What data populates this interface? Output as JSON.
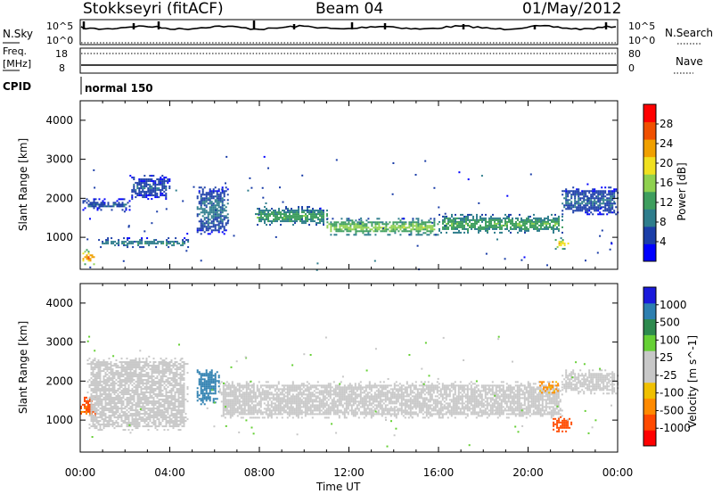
{
  "header": {
    "station": "Stokkseyri (fitACF)",
    "beam": "Beam 04",
    "date": "01/May/2012"
  },
  "params": {
    "nsky_label": "N.Sky",
    "nsky_ticks": [
      "10^5",
      "10^0"
    ],
    "nsearch_label": "N.Search",
    "nsearch_ticks": [
      "10^5",
      "10^0"
    ],
    "freq_label_1": "Freq.",
    "freq_label_2": "[MHz]",
    "freq_ticks": [
      "18",
      "8"
    ],
    "nave_label": "Nave",
    "nave_ticks": [
      "80",
      "0"
    ],
    "cpid_label": "CPID",
    "cpid_value": "normal 150"
  },
  "colors": {
    "power_scale": [
      "#0000ff",
      "#1b3ea8",
      "#2e7d8c",
      "#3e9e5e",
      "#8fd14f",
      "#f0e020",
      "#f0a000",
      "#f05000",
      "#ff0000"
    ],
    "velocity_scale": [
      "#ff0000",
      "#ff4a00",
      "#ff8a00",
      "#f0c000",
      "#c8c8c8",
      "#c8c8c8",
      "#66d035",
      "#2d8a4e",
      "#2d7fb0",
      "#1a1adc"
    ],
    "ground_scatter": "#c8c8c8"
  },
  "chart_data": [
    {
      "type": "heatmap",
      "title": "Power",
      "ylabel": "Slant Range [km]",
      "xlabel": "Time UT",
      "x_ticks": [
        "00:00",
        "04:00",
        "08:00",
        "12:00",
        "16:00",
        "20:00",
        "00:00"
      ],
      "x_range_hours": [
        0,
        24
      ],
      "y_ticks": [
        1000,
        2000,
        3000,
        4000
      ],
      "ylim": [
        180,
        4500
      ],
      "colorbar": {
        "label": "Power [dB]",
        "ticks": [
          4,
          8,
          12,
          16,
          20,
          24,
          28
        ],
        "range": [
          0,
          32
        ]
      },
      "scatter_bands": [
        {
          "start_h": 0.1,
          "end_h": 2.2,
          "range_km": [
            1700,
            2000
          ],
          "power_db": 6
        },
        {
          "start_h": 2.2,
          "end_h": 4.0,
          "range_km": [
            2000,
            2600
          ],
          "power_db": 6
        },
        {
          "start_h": 0.8,
          "end_h": 4.8,
          "range_km": [
            750,
            1000
          ],
          "power_db": 9
        },
        {
          "start_h": 0.1,
          "end_h": 0.6,
          "range_km": [
            300,
            700
          ],
          "power_db": 24
        },
        {
          "start_h": 5.2,
          "end_h": 6.6,
          "range_km": [
            1100,
            2300
          ],
          "power_db": 8
        },
        {
          "start_h": 7.8,
          "end_h": 11.0,
          "range_km": [
            1300,
            1800
          ],
          "power_db": 12
        },
        {
          "start_h": 11.0,
          "end_h": 16.0,
          "range_km": [
            1050,
            1500
          ],
          "power_db": 15
        },
        {
          "start_h": 16.0,
          "end_h": 21.5,
          "range_km": [
            1100,
            1600
          ],
          "power_db": 13
        },
        {
          "start_h": 21.2,
          "end_h": 21.8,
          "range_km": [
            700,
            1000
          ],
          "power_db": 20
        },
        {
          "start_h": 21.5,
          "end_h": 24.0,
          "range_km": [
            1600,
            2300
          ],
          "power_db": 7
        }
      ]
    },
    {
      "type": "heatmap",
      "title": "Velocity",
      "ylabel": "Slant Range [km]",
      "xlabel": "Time UT",
      "x_ticks": [
        "00:00",
        "04:00",
        "08:00",
        "12:00",
        "16:00",
        "20:00",
        "00:00"
      ],
      "x_range_hours": [
        0,
        24
      ],
      "y_ticks": [
        1000,
        2000,
        3000,
        4000
      ],
      "ylim": [
        180,
        4500
      ],
      "colorbar": {
        "label": "Velocity [m s^-1]",
        "ticks": [
          1000,
          500,
          100,
          25,
          -25,
          -100,
          -500,
          -1000
        ],
        "range": [
          -1000,
          1000
        ]
      },
      "scatter_bands": [
        {
          "start_h": 0.0,
          "end_h": 0.7,
          "range_km": [
            1100,
            1600
          ],
          "velocity": -600
        },
        {
          "start_h": 0.3,
          "end_h": 4.8,
          "range_km": [
            750,
            2600
          ],
          "velocity": 0
        },
        {
          "start_h": 5.2,
          "end_h": 6.2,
          "range_km": [
            1400,
            2300
          ],
          "velocity": 700
        },
        {
          "start_h": 6.2,
          "end_h": 21.5,
          "range_km": [
            1050,
            2000
          ],
          "velocity": 0
        },
        {
          "start_h": 20.5,
          "end_h": 21.3,
          "range_km": [
            1700,
            2000
          ],
          "velocity": -200
        },
        {
          "start_h": 21.1,
          "end_h": 21.9,
          "range_km": [
            700,
            1100
          ],
          "velocity": -800
        },
        {
          "start_h": 21.5,
          "end_h": 24.0,
          "range_km": [
            1700,
            2300
          ],
          "velocity": 0
        }
      ]
    }
  ]
}
